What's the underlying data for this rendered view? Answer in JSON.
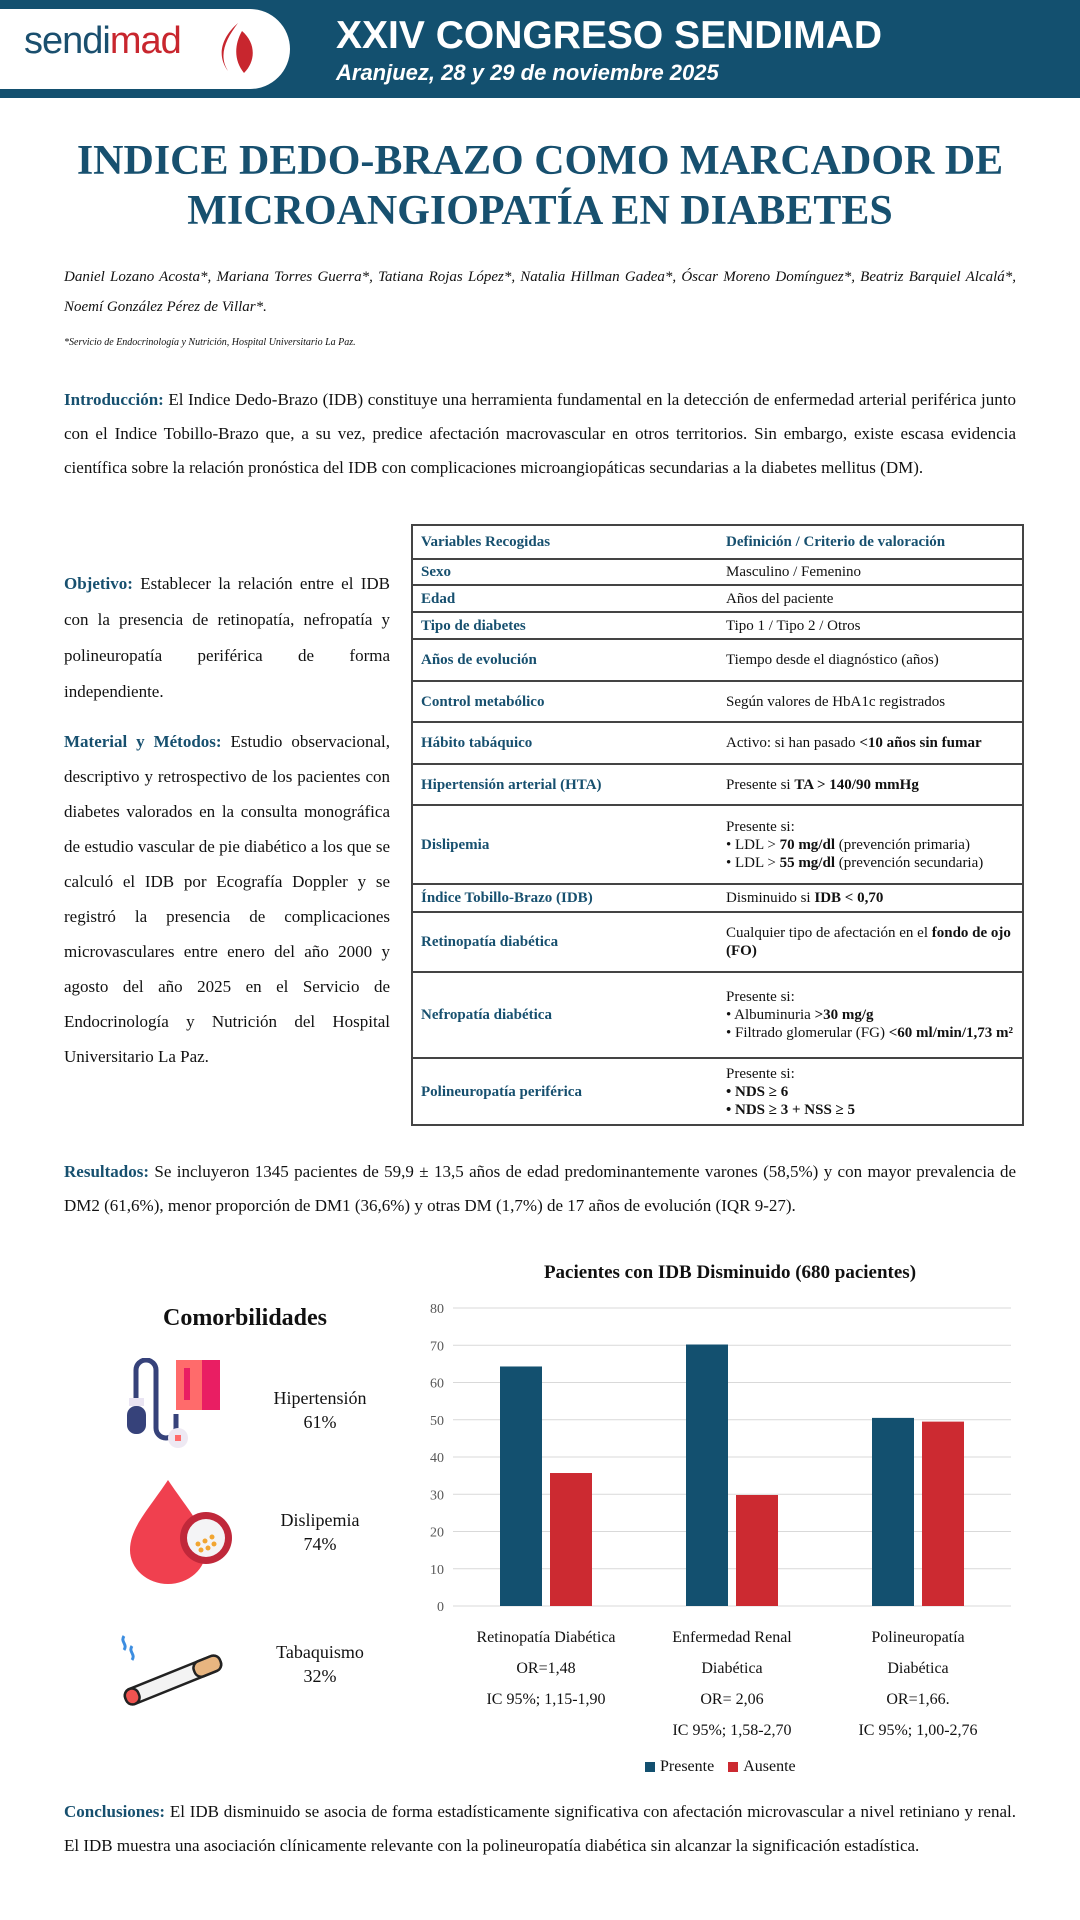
{
  "header": {
    "logo_a": "sendi",
    "logo_b": "mad",
    "congress": "XXIV CONGRESO SENDIMAD",
    "place": "Aranjuez, 28 y 29 de noviembre 2025"
  },
  "title": {
    "line1": "INDICE DEDO-BRAZO COMO MARCADOR DE",
    "line2": "MICROANGIOPATÍA EN DIABETES"
  },
  "authors": "Daniel Lozano Acosta*, Mariana Torres Guerra*, Tatiana Rojas López*, Natalia Hillman Gadea*, Óscar Moreno Domínguez*, Beatriz Barquiel Alcalá*, Noemí González Pérez de Villar*.",
  "footnote": "*Servicio de Endocrinología y Nutrición, Hospital Universitario La Paz.",
  "intro": {
    "label": "Introducción:",
    "text": " El Indice Dedo-Brazo (IDB) constituye una herramienta fundamental en la detección de enfermedad arterial periférica junto con el Indice Tobillo-Brazo que, a su vez, predice afectación macrovascular en otros territorios. Sin embargo, existe escasa evidencia científica sobre la relación pronóstica del IDB con complicaciones microangiopáticas secundarias a la diabetes mellitus (DM)."
  },
  "objetivo": {
    "label": "Objetivo:",
    "text": " Establecer la relación entre el IDB con la presencia de retinopatía, nefropatía y polineuropatía periférica de forma independiente."
  },
  "metodos": {
    "label": "Material y Métodos:",
    "text": " Estudio observacional, descriptivo y retrospectivo de los pacientes con diabetes valorados en la consulta monográfica de estudio vascular de pie diabético a los que se calculó el IDB por Ecografía Doppler y se registró la presencia de complicaciones microvasculares entre enero del año 2000 y agosto del año 2025 en el Servicio de Endocrinología y Nutrición del Hospital Universitario La Paz."
  },
  "table": {
    "headers": [
      "Variables Recogidas",
      "Definición / Criterio de valoración"
    ],
    "rows": [
      {
        "var": "Sexo",
        "def": "Masculino / Femenino"
      },
      {
        "var": "Edad",
        "def": "Años del paciente"
      },
      {
        "var": "Tipo de diabetes",
        "def": "Tipo 1 / Tipo 2 / Otros"
      },
      {
        "var": "Años de evolución",
        "def": "Tiempo desde el diagnóstico (años)"
      },
      {
        "var": "Control metabólico",
        "def": "Según valores de HbA1c registrados"
      },
      {
        "var": "Hábito tabáquico",
        "def": "Activo: si han pasado ",
        "def_b": "<10 años sin fumar"
      },
      {
        "var": "Hipertensión arterial (HTA)",
        "def": "Presente si ",
        "def_b": "TA > 140/90 mmHg"
      },
      {
        "var": "Dislipemia",
        "l0": "Presente si:",
        "l1a": "• LDL > ",
        "l1b": "70 mg/dl",
        "l1c": " (prevención primaria)",
        "l2a": "• LDL > ",
        "l2b": "55 mg/dl",
        "l2c": " (prevención secundaria)"
      },
      {
        "var": "Índice Tobillo-Brazo (IDB)",
        "def": "Disminuido si ",
        "def_b": "IDB < 0,70"
      },
      {
        "var": "Retinopatía diabética",
        "def": "Cualquier tipo de afectación en el ",
        "def_b": "fondo de ojo (FO)"
      },
      {
        "var": "Nefropatía diabética",
        "l0": "Presente si:",
        "l1a": "• Albuminuria ",
        "l1b": ">30 mg/g",
        "l2a": "• Filtrado glomerular (FG) ",
        "l2b": "<60 ml/min/1,73 m²"
      },
      {
        "var": "Polineuropatía periférica",
        "l0": "Presente si:",
        "l1b": "• NDS ≥ 6",
        "l2b": "• NDS ≥ 3 + NSS ≥ 5"
      }
    ]
  },
  "results": {
    "label": "Resultados:",
    "text": " Se incluyeron 1345 pacientes de 59,9 ±  13,5 años de edad predominantemente varones (58,5%) y con mayor prevalencia de DM2 (61,6%), menor proporción de DM1 (36,6%) y otras DM (1,7%) de 17 años de evolución (IQR 9-27)."
  },
  "comorbidities": {
    "title": "Comorbilidades",
    "items": [
      {
        "name": "Hipertensión",
        "value": "61%",
        "icon": "blood-pressure-monitor-icon"
      },
      {
        "name": "Dislipemia",
        "value": "74%",
        "icon": "blood-drop-cholesterol-icon"
      },
      {
        "name": "Tabaquismo",
        "value": "32%",
        "icon": "cigarette-icon"
      }
    ]
  },
  "chart_data": {
    "type": "bar",
    "title": "Pacientes con IDB Disminuido (680 pacientes)",
    "categories": [
      "Retinopatía Diabética",
      "Enfermedad Renal Diabética",
      "Polineuropatía Diabética"
    ],
    "category_lines": [
      [
        "Retinopatía Diabética",
        "OR=1,48",
        "IC 95%; 1,15-1,90"
      ],
      [
        "Enfermedad Renal",
        "Diabética",
        "OR= 2,06",
        "IC 95%; 1,58-2,70"
      ],
      [
        "Polineuropatía",
        "Diabética",
        "OR=1,66.",
        "IC 95%; 1,00-2,76"
      ]
    ],
    "series": [
      {
        "name": "Presente",
        "values": [
          64.3,
          70.2,
          50.5
        ],
        "color": "#13506f"
      },
      {
        "name": "Ausente",
        "values": [
          35.7,
          29.8,
          49.5
        ],
        "color": "#cc2a31"
      }
    ],
    "ylim": [
      0,
      80
    ],
    "yticks": [
      "0",
      "10",
      "20",
      "30",
      "40",
      "50",
      "60",
      "70",
      "80"
    ],
    "grid": true,
    "legend": "bottom"
  },
  "conclusions": {
    "label": "Conclusiones:",
    "text": " El IDB disminuido se asocia de forma estadísticamente significativa con afectación microvascular a nivel retiniano y renal. El IDB muestra una asociación clínicamente relevante con la polineuropatía diabética sin alcanzar la significación estadística."
  }
}
